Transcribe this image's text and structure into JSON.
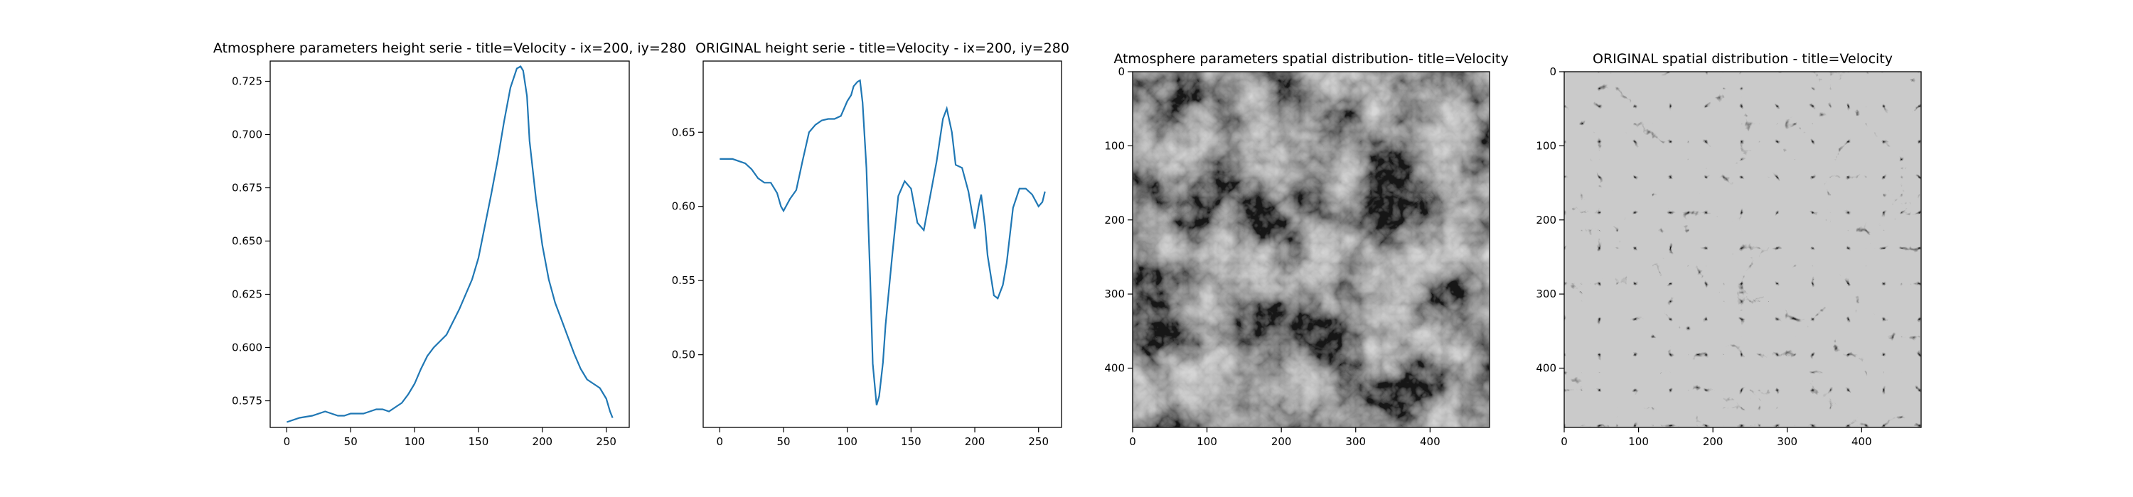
{
  "palette": {
    "line": "#1f77b4",
    "axes": "#000000",
    "background": "#ffffff"
  },
  "chart_data": [
    {
      "type": "line",
      "title": "Atmosphere parameters height serie - title=Velocity - ix=200, iy=280",
      "xlim": [
        -13,
        268
      ],
      "ylim": [
        0.5625,
        0.7345
      ],
      "xticks": [
        0,
        50,
        100,
        150,
        200,
        250
      ],
      "yticks": [
        0.575,
        0.6,
        0.625,
        0.65,
        0.675,
        0.7,
        0.725
      ],
      "ytick_labels": [
        "0.575",
        "0.600",
        "0.625",
        "0.650",
        "0.675",
        "0.700",
        "0.725"
      ],
      "series": [
        {
          "x": [
            0,
            10,
            20,
            30,
            35,
            40,
            45,
            50,
            55,
            60,
            65,
            70,
            75,
            80,
            85,
            90,
            95,
            100,
            105,
            110,
            115,
            120,
            125,
            130,
            135,
            140,
            145,
            150,
            155,
            160,
            165,
            170,
            175,
            180,
            183,
            185,
            188,
            190,
            195,
            200,
            205,
            210,
            215,
            220,
            225,
            230,
            235,
            240,
            245,
            250,
            253,
            255
          ],
          "y": [
            0.565,
            0.567,
            0.568,
            0.57,
            0.569,
            0.568,
            0.568,
            0.569,
            0.569,
            0.569,
            0.57,
            0.571,
            0.571,
            0.57,
            0.572,
            0.574,
            0.578,
            0.583,
            0.59,
            0.596,
            0.6,
            0.603,
            0.606,
            0.612,
            0.618,
            0.625,
            0.632,
            0.642,
            0.657,
            0.672,
            0.688,
            0.706,
            0.722,
            0.731,
            0.732,
            0.73,
            0.718,
            0.697,
            0.67,
            0.648,
            0.632,
            0.621,
            0.613,
            0.605,
            0.597,
            0.59,
            0.585,
            0.583,
            0.581,
            0.576,
            0.57,
            0.567
          ]
        }
      ]
    },
    {
      "type": "line",
      "title": "ORIGINAL height serie - title=Velocity - ix=200, iy=280",
      "xlim": [
        -13,
        268
      ],
      "ylim": [
        0.451,
        0.698
      ],
      "xticks": [
        0,
        50,
        100,
        150,
        200,
        250
      ],
      "yticks": [
        0.5,
        0.55,
        0.6,
        0.65
      ],
      "ytick_labels": [
        "0.50",
        "0.55",
        "0.60",
        "0.65"
      ],
      "series": [
        {
          "x": [
            0,
            10,
            20,
            25,
            30,
            35,
            40,
            45,
            48,
            50,
            55,
            60,
            65,
            70,
            75,
            80,
            85,
            90,
            95,
            100,
            103,
            105,
            108,
            110,
            112,
            115,
            118,
            120,
            123,
            125,
            128,
            130,
            135,
            140,
            145,
            150,
            155,
            160,
            165,
            170,
            175,
            178,
            182,
            185,
            190,
            195,
            200,
            203,
            205,
            208,
            210,
            215,
            218,
            222,
            225,
            230,
            235,
            240,
            245,
            250,
            253,
            255
          ],
          "y": [
            0.632,
            0.632,
            0.629,
            0.625,
            0.619,
            0.616,
            0.616,
            0.609,
            0.6,
            0.597,
            0.605,
            0.611,
            0.631,
            0.65,
            0.655,
            0.658,
            0.659,
            0.659,
            0.661,
            0.671,
            0.675,
            0.681,
            0.684,
            0.685,
            0.67,
            0.626,
            0.55,
            0.494,
            0.466,
            0.472,
            0.495,
            0.52,
            0.565,
            0.607,
            0.617,
            0.612,
            0.589,
            0.584,
            0.607,
            0.63,
            0.659,
            0.666,
            0.65,
            0.628,
            0.626,
            0.61,
            0.585,
            0.6,
            0.608,
            0.587,
            0.567,
            0.54,
            0.538,
            0.547,
            0.562,
            0.599,
            0.612,
            0.612,
            0.608,
            0.6,
            0.603,
            0.61
          ]
        }
      ]
    },
    {
      "type": "heatmap",
      "title": "Atmosphere parameters spatial distribution- title=Velocity",
      "xlim": [
        0,
        480
      ],
      "ylim": [
        480,
        0
      ],
      "xticks": [
        0,
        100,
        200,
        300,
        400
      ],
      "yticks": [
        0,
        100,
        200,
        300,
        400
      ],
      "colormap": "gray",
      "tone": "dark"
    },
    {
      "type": "heatmap",
      "title": "ORIGINAL spatial distribution - title=Velocity",
      "xlim": [
        0,
        480
      ],
      "ylim": [
        480,
        0
      ],
      "xticks": [
        0,
        100,
        200,
        300,
        400
      ],
      "yticks": [
        0,
        100,
        200,
        300,
        400
      ],
      "colormap": "gray",
      "tone": "light"
    }
  ]
}
